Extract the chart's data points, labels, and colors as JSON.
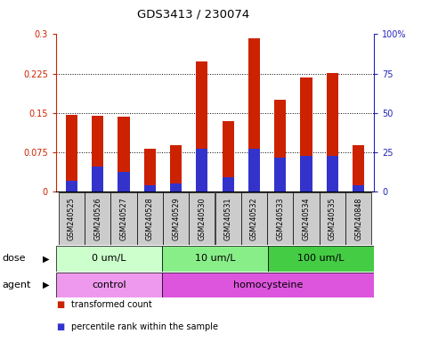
{
  "title": "GDS3413 / 230074",
  "samples": [
    "GSM240525",
    "GSM240526",
    "GSM240527",
    "GSM240528",
    "GSM240529",
    "GSM240530",
    "GSM240531",
    "GSM240532",
    "GSM240533",
    "GSM240534",
    "GSM240535",
    "GSM240848"
  ],
  "transformed_count": [
    0.146,
    0.145,
    0.143,
    0.082,
    0.088,
    0.248,
    0.135,
    0.293,
    0.175,
    0.218,
    0.226,
    0.088
  ],
  "percentile_rank_scaled": [
    0.02,
    0.048,
    0.038,
    0.012,
    0.015,
    0.082,
    0.028,
    0.082,
    0.065,
    0.068,
    0.068,
    0.012
  ],
  "bar_color": "#cc2200",
  "percentile_color": "#3333cc",
  "ylim_left": [
    0,
    0.3
  ],
  "ylim_right": [
    0,
    100
  ],
  "yticks_left": [
    0,
    0.075,
    0.15,
    0.225,
    0.3
  ],
  "yticks_right": [
    0,
    25,
    50,
    75,
    100
  ],
  "ytick_labels_left": [
    "0",
    "0.075",
    "0.15",
    "0.225",
    "0.3"
  ],
  "ytick_labels_right": [
    "0",
    "25",
    "50",
    "75",
    "100%"
  ],
  "gridlines": [
    0.075,
    0.15,
    0.225
  ],
  "dose_groups": [
    {
      "label": "0 um/L",
      "start": 0,
      "end": 4,
      "color": "#ccffcc"
    },
    {
      "label": "10 um/L",
      "start": 4,
      "end": 8,
      "color": "#88ee88"
    },
    {
      "label": "100 um/L",
      "start": 8,
      "end": 12,
      "color": "#44cc44"
    }
  ],
  "agent_groups": [
    {
      "label": "control",
      "start": 0,
      "end": 4,
      "color": "#ee99ee"
    },
    {
      "label": "homocysteine",
      "start": 4,
      "end": 12,
      "color": "#dd55dd"
    }
  ],
  "dose_label": "dose",
  "agent_label": "agent",
  "legend_items": [
    {
      "label": "transformed count",
      "color": "#cc2200",
      "marker": "s"
    },
    {
      "label": "percentile rank within the sample",
      "color": "#3333cc",
      "marker": "s"
    }
  ],
  "bar_width": 0.45,
  "blue_bar_width": 0.45,
  "background_color": "#ffffff",
  "plot_bg": "#ffffff",
  "label_row_color": "#cccccc"
}
